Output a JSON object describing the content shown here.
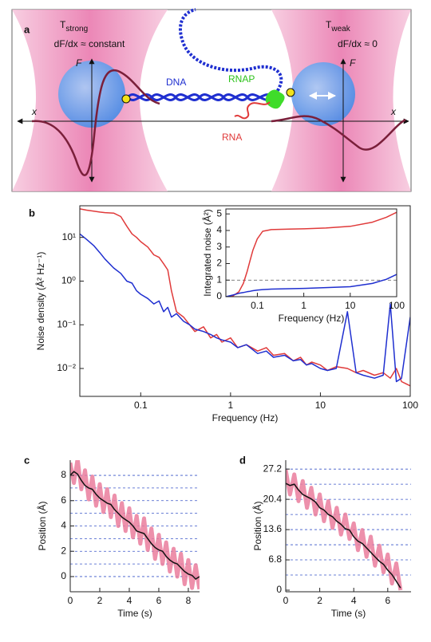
{
  "diagram": {
    "label": "a",
    "left_trap": {
      "symbol": "T",
      "subscript": "strong",
      "condition": "dF/dx ≈ constant",
      "force_axis": "F",
      "position_axis": "x"
    },
    "right_trap": {
      "symbol": "T",
      "subscript": "weak",
      "condition": "dF/dx ≈ 0",
      "force_axis": "F",
      "position_axis": "x"
    },
    "dna": "DNA",
    "rnap": "RNAP",
    "rna": "RNA"
  },
  "chart_data": [
    {
      "type": "line",
      "label": "b",
      "x_label": "Frequency (Hz)",
      "y_label": "Noise density (Å² Hz⁻¹)",
      "xscale": "log",
      "yscale": "log",
      "xlim": [
        0.021,
        100
      ],
      "ylim": [
        0.0023,
        53
      ],
      "xticks": [
        0.1,
        1,
        10,
        100
      ],
      "yticks": [
        {
          "value": 0.01,
          "label": "10⁻²"
        },
        {
          "value": 0.1,
          "label": "10⁻¹"
        },
        {
          "value": 1,
          "label": "10⁰"
        },
        {
          "value": 10,
          "label": "10¹"
        }
      ],
      "x": [
        0.021,
        0.025,
        0.03,
        0.035,
        0.04,
        0.05,
        0.06,
        0.07,
        0.08,
        0.09,
        0.1,
        0.12,
        0.14,
        0.16,
        0.18,
        0.2,
        0.22,
        0.25,
        0.3,
        0.35,
        0.4,
        0.5,
        0.6,
        0.7,
        0.8,
        1,
        1.2,
        1.5,
        2,
        2.5,
        3,
        4,
        5,
        6,
        7,
        8,
        10,
        12,
        15,
        20,
        25,
        30,
        40,
        50,
        60,
        70,
        80,
        100
      ],
      "series": [
        {
          "color": "#e03a3a",
          "values": [
            45,
            42,
            40,
            38,
            37,
            36,
            30,
            18,
            12,
            10,
            8,
            6,
            4,
            3.5,
            2.5,
            1.8,
            0.6,
            0.2,
            0.15,
            0.1,
            0.07,
            0.09,
            0.05,
            0.06,
            0.04,
            0.05,
            0.03,
            0.035,
            0.025,
            0.03,
            0.02,
            0.022,
            0.015,
            0.018,
            0.012,
            0.014,
            0.012,
            0.009,
            0.011,
            0.01,
            0.008,
            0.009,
            0.007,
            0.008,
            0.006,
            0.01,
            0.005,
            0.004
          ]
        },
        {
          "color": "#1f2fd0",
          "values": [
            12,
            9,
            6.5,
            4.5,
            3.2,
            2,
            1.5,
            1,
            0.9,
            0.6,
            0.5,
            0.4,
            0.3,
            0.35,
            0.2,
            0.25,
            0.15,
            0.18,
            0.12,
            0.1,
            0.08,
            0.07,
            0.06,
            0.05,
            0.045,
            0.04,
            0.03,
            0.035,
            0.022,
            0.025,
            0.018,
            0.02,
            0.015,
            0.016,
            0.012,
            0.013,
            0.01,
            0.009,
            0.01,
            0.2,
            0.008,
            0.007,
            0.006,
            0.007,
            0.3,
            0.005,
            0.006,
            0.15
          ]
        }
      ]
    },
    {
      "type": "line",
      "x_label": "Frequency (Hz)",
      "y_label": "Integrated noise (Å²)",
      "xscale": "log",
      "xlim": [
        0.021,
        100
      ],
      "ylim": [
        0,
        5.3
      ],
      "xticks": [
        0.1,
        1,
        10,
        100
      ],
      "yticks": [
        0,
        1,
        2,
        3,
        4,
        5
      ],
      "reference_line": 1,
      "x": [
        0.021,
        0.03,
        0.04,
        0.05,
        0.06,
        0.07,
        0.08,
        0.1,
        0.13,
        0.2,
        0.5,
        1,
        3,
        10,
        30,
        60,
        100
      ],
      "series": [
        {
          "color": "#e03a3a",
          "values": [
            0,
            0.05,
            0.3,
            0.8,
            1.5,
            2.2,
            2.8,
            3.5,
            3.95,
            4.05,
            4.08,
            4.1,
            4.15,
            4.25,
            4.5,
            4.8,
            5.1
          ]
        },
        {
          "color": "#1f2fd0",
          "values": [
            0,
            0.1,
            0.2,
            0.25,
            0.3,
            0.33,
            0.36,
            0.4,
            0.43,
            0.46,
            0.48,
            0.5,
            0.55,
            0.6,
            0.8,
            1.05,
            1.35
          ]
        }
      ]
    },
    {
      "type": "line",
      "label": "c",
      "x_label": "Time (s)",
      "y_label": "Position (Å)",
      "xlim": [
        0,
        8.76
      ],
      "ylim": [
        -1.2,
        9.2
      ],
      "xticks": [
        0,
        2,
        4,
        6,
        8
      ],
      "yticks": [
        0,
        2,
        4,
        6,
        8
      ],
      "dashed_levels": [
        0,
        1,
        2,
        3,
        4,
        5,
        6,
        7,
        8
      ],
      "x": [
        0,
        0.25,
        0.5,
        0.75,
        1,
        1.25,
        1.5,
        1.75,
        2,
        2.25,
        2.5,
        2.75,
        3,
        3.25,
        3.5,
        3.75,
        4,
        4.25,
        4.5,
        4.75,
        5,
        5.25,
        5.5,
        5.75,
        6,
        6.25,
        6.5,
        6.75,
        7,
        7.25,
        7.5,
        7.75,
        8,
        8.25,
        8.5,
        8.75
      ],
      "series": [
        {
          "color": "#ea7d9c",
          "values": [
            9.0,
            7.4,
            9.3,
            6.9,
            8.4,
            6.1,
            7.9,
            5.6,
            7.3,
            5.1,
            6.9,
            4.7,
            6.4,
            4.0,
            5.8,
            3.6,
            5.4,
            3.1,
            4.8,
            2.6,
            4.6,
            2.1,
            3.8,
            1.4,
            3.3,
            1.0,
            2.7,
            0.4,
            2.2,
            0.0,
            1.8,
            -0.6,
            1.3,
            -0.9,
            0.9,
            -1.0
          ]
        },
        {
          "color": "#111111",
          "values": [
            8.0,
            8.3,
            8.1,
            7.6,
            7.2,
            7.0,
            6.9,
            6.5,
            6.2,
            6.0,
            5.8,
            5.7,
            5.3,
            5.0,
            4.7,
            4.5,
            4.3,
            4.0,
            3.6,
            3.5,
            3.4,
            3.0,
            2.6,
            2.3,
            2.1,
            2.0,
            1.6,
            1.3,
            1.1,
            1.0,
            0.7,
            0.4,
            0.2,
            0.1,
            -0.2,
            0.0
          ]
        }
      ]
    },
    {
      "type": "line",
      "label": "d",
      "x_label": "Time (s)",
      "y_label": "Position (Å)",
      "xlim": [
        0,
        7.37
      ],
      "ylim": [
        -0.36,
        29.2
      ],
      "xticks": [
        0,
        2,
        4,
        6
      ],
      "yticks": [
        0,
        6.8,
        13.6,
        20.4,
        27.2
      ],
      "dashed_levels": [
        3.4,
        6.8,
        10.2,
        13.6,
        17,
        20.4,
        23.8,
        27.2
      ],
      "x": [
        0,
        0.25,
        0.5,
        0.75,
        1,
        1.25,
        1.5,
        1.75,
        2,
        2.25,
        2.5,
        2.75,
        3,
        3.25,
        3.5,
        3.75,
        4,
        4.25,
        4.5,
        4.75,
        5,
        5.25,
        5.5,
        5.75,
        6,
        6.25,
        6.5,
        6.75
      ],
      "series": [
        {
          "color": "#ea7d9c",
          "values": [
            27.0,
            21.5,
            26.0,
            20.0,
            24.5,
            18.5,
            23.0,
            17.0,
            21.5,
            15.5,
            20.0,
            14.0,
            18.5,
            12.5,
            17.0,
            11.5,
            15.0,
            9.0,
            13.5,
            7.5,
            12.0,
            5.5,
            10.0,
            4.0,
            8.0,
            1.5,
            6.0,
            0.0
          ]
        },
        {
          "color": "#111111",
          "values": [
            24,
            23.5,
            23.8,
            22.5,
            21.5,
            21,
            20.5,
            19.8,
            18.5,
            18,
            17,
            16.5,
            15.5,
            14.8,
            13.8,
            13.5,
            12,
            11,
            10.5,
            9.5,
            8.5,
            7.5,
            6.5,
            5.8,
            4.5,
            3.5,
            2,
            0.5
          ]
        }
      ]
    }
  ]
}
